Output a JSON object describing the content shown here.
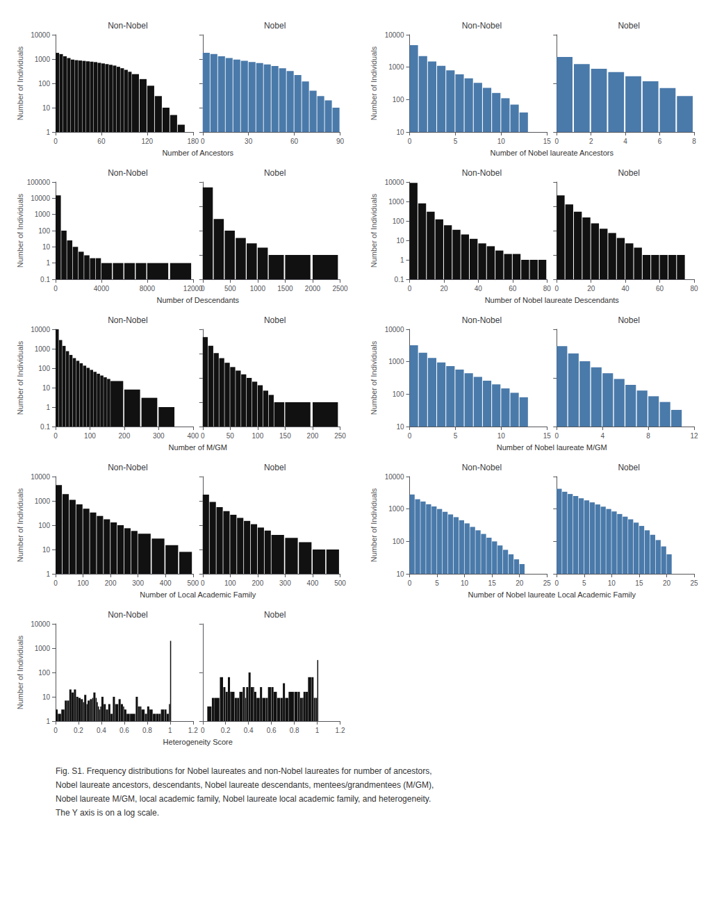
{
  "chart_data": [
    {
      "type": "bar",
      "title": "Non-Nobel",
      "ylabel": "Number of Individuals",
      "xlabel": "Number of Ancestors",
      "color": "#111111",
      "log": "y",
      "grid": false,
      "x": [
        0,
        5,
        10,
        15,
        20,
        25,
        30,
        35,
        40,
        45,
        50,
        55,
        60,
        65,
        70,
        75,
        80,
        85,
        90,
        95,
        100,
        110,
        120,
        130,
        140,
        150,
        160
      ],
      "values": [
        1800,
        1600,
        1300,
        1100,
        950,
        900,
        870,
        840,
        810,
        780,
        750,
        700,
        660,
        620,
        580,
        540,
        480,
        420,
        360,
        300,
        240,
        150,
        80,
        30,
        10,
        5,
        2
      ],
      "xlim": [
        0,
        180
      ],
      "xticks": [
        0,
        60,
        120,
        180
      ],
      "ylim": [
        1,
        10000
      ],
      "yticks": [
        1,
        10,
        100,
        1000,
        10000
      ],
      "annotations": [
        "Fig. S1. Frequency distributions for Nobel laureates and non-Nobel laureates for number of ancestors,",
        "Nobel laureate ancestors, descendants, Nobel laureate descendants, mentees/grandmentees (M/GM),",
        "Nobel laureate M/GM, local academic family, Nobel laureate local academic family, and heterogeneity.",
        "The Y axis is on a log scale."
      ]
    },
    {
      "type": "bar",
      "title": "Nobel",
      "color": "#4a7aaa",
      "log": "y",
      "grid": false,
      "tick_labels": "x",
      "x": [
        0,
        5,
        10,
        15,
        20,
        25,
        30,
        35,
        40,
        45,
        50,
        55,
        60,
        65,
        70,
        75,
        80,
        85
      ],
      "values": [
        180,
        160,
        130,
        110,
        95,
        85,
        75,
        68,
        60,
        52,
        42,
        32,
        22,
        12,
        5,
        3,
        2,
        1
      ],
      "xlim": [
        0,
        90
      ],
      "xticks": [
        0,
        30,
        60,
        90
      ],
      "ylim": [
        0.1,
        1000
      ],
      "yticks": [
        0.1,
        1,
        10,
        100,
        1000
      ]
    },
    {
      "type": "bar",
      "title": "Non-Nobel",
      "ylabel": "Number of Individuals",
      "xlabel": "Number of Nobel laureate Ancestors",
      "color": "#4a7aaa",
      "log": "y",
      "grid": false,
      "x": [
        0,
        1,
        2,
        3,
        4,
        5,
        6,
        7,
        8,
        9,
        10,
        11,
        12
      ],
      "values": [
        4800,
        2200,
        1500,
        1100,
        800,
        600,
        450,
        330,
        230,
        160,
        110,
        70,
        40
      ],
      "xlim": [
        0,
        15
      ],
      "xticks": [
        0,
        5,
        10,
        15
      ],
      "ylim": [
        10,
        10000
      ],
      "yticks": [
        10,
        100,
        1000,
        10000
      ]
    },
    {
      "type": "bar",
      "title": "Nobel",
      "color": "#4a7aaa",
      "log": "y",
      "grid": false,
      "tick_labels": "x",
      "x": [
        0,
        1,
        2,
        3,
        4,
        5,
        6,
        7
      ],
      "values": [
        350,
        250,
        200,
        170,
        140,
        110,
        80,
        55
      ],
      "xlim": [
        0,
        8
      ],
      "xticks": [
        0,
        2,
        4,
        6,
        8
      ],
      "ylim": [
        10,
        1000
      ],
      "yticks": [
        10,
        100,
        1000
      ]
    },
    {
      "type": "bar",
      "title": "Non-Nobel",
      "ylabel": "Number of Individuals",
      "xlabel": "Number of Descendants",
      "color": "#111111",
      "log": "y",
      "grid": false,
      "x": [
        0,
        500,
        1000,
        1500,
        2000,
        2500,
        3000,
        3500,
        4000,
        5000,
        6000,
        7000,
        8000,
        10000
      ],
      "values": [
        15000,
        100,
        25,
        10,
        5,
        3,
        2,
        2,
        1,
        1,
        1,
        1,
        1,
        1
      ],
      "xlim": [
        0,
        12000
      ],
      "xticks": [
        0,
        4000,
        8000,
        12000
      ],
      "ylim": [
        0.1,
        100000
      ],
      "yticks": [
        0.1,
        1,
        10,
        100,
        1000,
        10000,
        100000
      ]
    },
    {
      "type": "bar",
      "title": "Nobel",
      "color": "#111111",
      "log": "y",
      "grid": false,
      "tick_labels": "x",
      "x": [
        0,
        200,
        400,
        600,
        800,
        1000,
        1200,
        1500,
        2000
      ],
      "values": [
        600,
        30,
        10,
        5,
        3,
        2,
        1,
        1,
        1
      ],
      "xlim": [
        0,
        2500
      ],
      "xticks": [
        0,
        500,
        1000,
        1500,
        2000,
        2500
      ],
      "ylim": [
        0.1,
        1000
      ],
      "yticks": [
        0.1,
        1,
        10,
        100,
        1000
      ]
    },
    {
      "type": "bar",
      "title": "Non-Nobel",
      "ylabel": "Number of Individuals",
      "xlabel": "Number of Nobel laureate Descendants",
      "color": "#111111",
      "log": "y",
      "grid": false,
      "x": [
        0,
        5,
        10,
        15,
        20,
        25,
        30,
        35,
        40,
        45,
        50,
        55,
        60,
        65,
        70,
        75
      ],
      "values": [
        9000,
        800,
        300,
        120,
        60,
        35,
        20,
        12,
        7,
        5,
        3,
        2,
        2,
        1,
        1,
        1
      ],
      "xlim": [
        0,
        80
      ],
      "xticks": [
        0,
        20,
        40,
        60,
        80
      ],
      "ylim": [
        0.1,
        10000
      ],
      "yticks": [
        0.1,
        1,
        10,
        100,
        1000,
        10000
      ]
    },
    {
      "type": "bar",
      "title": "Nobel",
      "color": "#111111",
      "log": "y",
      "grid": false,
      "tick_labels": "x",
      "x": [
        0,
        5,
        10,
        15,
        20,
        25,
        30,
        35,
        40,
        45,
        50,
        55,
        60,
        65,
        70
      ],
      "values": [
        280,
        120,
        60,
        35,
        20,
        12,
        8,
        5,
        3,
        2,
        1,
        1,
        1,
        1,
        1
      ],
      "xlim": [
        0,
        80
      ],
      "xticks": [
        0,
        20,
        40,
        60,
        80
      ],
      "ylim": [
        0.1,
        1000
      ],
      "yticks": [
        0.1,
        1,
        10,
        100,
        1000
      ]
    },
    {
      "type": "bar",
      "title": "Non-Nobel",
      "ylabel": "Number of Individuals",
      "xlabel": "Number of M/GM",
      "color": "#111111",
      "log": "y",
      "grid": false,
      "x": [
        0,
        10,
        20,
        30,
        40,
        50,
        60,
        70,
        80,
        90,
        100,
        110,
        120,
        130,
        140,
        150,
        160,
        200,
        250,
        300
      ],
      "values": [
        10000,
        2800,
        1400,
        750,
        480,
        330,
        240,
        180,
        135,
        105,
        82,
        65,
        52,
        42,
        34,
        28,
        22,
        8,
        3,
        1
      ],
      "xlim": [
        0,
        400
      ],
      "xticks": [
        0,
        100,
        200,
        300,
        400
      ],
      "ylim": [
        0.1,
        10000
      ],
      "yticks": [
        0.1,
        1,
        10,
        100,
        1000,
        10000
      ]
    },
    {
      "type": "bar",
      "title": "Nobel",
      "color": "#111111",
      "log": "y",
      "grid": false,
      "tick_labels": "x",
      "x": [
        0,
        10,
        20,
        30,
        40,
        50,
        60,
        70,
        80,
        90,
        100,
        110,
        120,
        130,
        150,
        200
      ],
      "values": [
        480,
        210,
        105,
        65,
        42,
        28,
        20,
        14,
        10,
        7,
        5,
        3,
        2,
        1,
        1,
        1
      ],
      "xlim": [
        0,
        250
      ],
      "xticks": [
        0,
        50,
        100,
        150,
        200,
        250
      ],
      "ylim": [
        0.1,
        1000
      ],
      "yticks": [
        0.1,
        1,
        10,
        100,
        1000
      ]
    },
    {
      "type": "bar",
      "title": "Non-Nobel",
      "ylabel": "Number of Individuals",
      "xlabel": "Number of Nobel laureate M/GM",
      "color": "#4a7aaa",
      "log": "y",
      "grid": false,
      "x": [
        0,
        1,
        2,
        3,
        4,
        5,
        6,
        7,
        8,
        9,
        10,
        11,
        12
      ],
      "values": [
        3200,
        1900,
        1300,
        950,
        730,
        570,
        440,
        340,
        260,
        200,
        150,
        110,
        80
      ],
      "xlim": [
        0,
        15
      ],
      "xticks": [
        0,
        5,
        10,
        15
      ],
      "ylim": [
        10,
        10000
      ],
      "yticks": [
        10,
        100,
        1000,
        10000
      ]
    },
    {
      "type": "bar",
      "title": "Nobel",
      "color": "#4a7aaa",
      "log": "y",
      "grid": false,
      "tick_labels": "x",
      "x": [
        0,
        1,
        2,
        3,
        4,
        5,
        6,
        7,
        8,
        9,
        10
      ],
      "values": [
        450,
        320,
        220,
        165,
        125,
        95,
        72,
        55,
        42,
        32,
        22
      ],
      "xlim": [
        0,
        12
      ],
      "xticks": [
        0,
        4,
        8,
        12
      ],
      "ylim": [
        10,
        1000
      ],
      "yticks": [
        10,
        100,
        1000
      ]
    },
    {
      "type": "bar",
      "title": "Non-Nobel",
      "ylabel": "Number of Individuals",
      "xlabel": "Number of Local Academic Family",
      "color": "#111111",
      "log": "y",
      "grid": false,
      "x": [
        0,
        25,
        50,
        75,
        100,
        125,
        150,
        175,
        200,
        225,
        250,
        275,
        300,
        350,
        400,
        450
      ],
      "values": [
        4500,
        1900,
        1100,
        720,
        480,
        330,
        240,
        175,
        130,
        100,
        75,
        58,
        45,
        28,
        15,
        8
      ],
      "xlim": [
        0,
        500
      ],
      "xticks": [
        0,
        100,
        200,
        300,
        400,
        500
      ],
      "ylim": [
        1,
        10000
      ],
      "yticks": [
        1,
        10,
        100,
        1000,
        10000
      ]
    },
    {
      "type": "bar",
      "title": "Nobel",
      "color": "#111111",
      "log": "y",
      "grid": false,
      "tick_labels": "x",
      "x": [
        0,
        25,
        50,
        75,
        100,
        125,
        150,
        175,
        200,
        225,
        250,
        300,
        350,
        400,
        450
      ],
      "values": [
        180,
        90,
        55,
        38,
        27,
        20,
        15,
        11,
        8,
        6,
        4,
        3,
        2,
        1,
        1
      ],
      "xlim": [
        0,
        500
      ],
      "xticks": [
        0,
        100,
        200,
        300,
        400,
        500
      ],
      "ylim": [
        0.1,
        1000
      ],
      "yticks": [
        0.1,
        1,
        10,
        100,
        1000
      ]
    },
    {
      "type": "bar",
      "title": "Non-Nobel",
      "ylabel": "Number of Individuals",
      "xlabel": "Number of Nobel laureate Local Academic Family",
      "color": "#4a7aaa",
      "log": "y",
      "grid": false,
      "x": [
        0,
        1,
        2,
        3,
        4,
        5,
        6,
        7,
        8,
        9,
        10,
        11,
        12,
        13,
        14,
        15,
        16,
        17,
        18,
        19,
        20
      ],
      "values": [
        2800,
        2000,
        1700,
        1400,
        1200,
        1000,
        820,
        680,
        560,
        450,
        360,
        280,
        220,
        170,
        130,
        100,
        75,
        55,
        40,
        28,
        20
      ],
      "xlim": [
        0,
        25
      ],
      "xticks": [
        0,
        5,
        10,
        15,
        20,
        25
      ],
      "ylim": [
        10,
        10000
      ],
      "yticks": [
        10,
        100,
        1000,
        10000
      ]
    },
    {
      "type": "bar",
      "title": "Nobel",
      "color": "#4a7aaa",
      "log": "y",
      "grid": false,
      "tick_labels": "x",
      "x": [
        0,
        1,
        2,
        3,
        4,
        5,
        6,
        7,
        8,
        9,
        10,
        11,
        12,
        13,
        14,
        15,
        16,
        17,
        18,
        19,
        20
      ],
      "values": [
        420,
        340,
        290,
        250,
        215,
        185,
        160,
        138,
        118,
        100,
        84,
        70,
        58,
        48,
        38,
        30,
        22,
        16,
        11,
        7,
        4
      ],
      "xlim": [
        0,
        25
      ],
      "xticks": [
        0,
        5,
        10,
        15,
        20,
        25
      ],
      "ylim": [
        1,
        1000
      ],
      "yticks": [
        1,
        10,
        100,
        1000
      ]
    },
    {
      "type": "bar",
      "title": "Non-Nobel",
      "ylabel": "Number of Individuals",
      "xlabel": "Heterogeneity Score",
      "color": "#111111",
      "log": "y",
      "grid": false,
      "x": [
        0.0,
        0.02,
        0.05,
        0.08,
        0.1,
        0.12,
        0.14,
        0.16,
        0.18,
        0.2,
        0.22,
        0.24,
        0.25,
        0.27,
        0.28,
        0.3,
        0.32,
        0.33,
        0.35,
        0.36,
        0.37,
        0.38,
        0.39,
        0.4,
        0.42,
        0.44,
        0.46,
        0.48,
        0.5,
        0.52,
        0.55,
        0.57,
        0.59,
        0.6,
        0.62,
        0.65,
        0.7,
        0.72,
        0.74,
        0.75,
        0.78,
        0.8,
        0.82,
        0.85,
        0.88,
        0.9,
        0.92,
        0.95,
        0.97,
        0.99,
        1.0
      ],
      "values": [
        3,
        2,
        3,
        7,
        7,
        20,
        15,
        20,
        10,
        9,
        8,
        6,
        12,
        5,
        7,
        8,
        9,
        15,
        9,
        6,
        4,
        3,
        4,
        10,
        5,
        3,
        5,
        2,
        10,
        5,
        8,
        5,
        4,
        3,
        2,
        2,
        10,
        4,
        4,
        3,
        2,
        4,
        3,
        2,
        2,
        2,
        3,
        3,
        2,
        5,
        2000
      ],
      "xlim": [
        0,
        1.2
      ],
      "xticks": [
        0,
        0.2,
        0.4,
        0.6,
        0.8,
        1,
        1.2
      ],
      "ylim": [
        1,
        10000
      ],
      "yticks": [
        1,
        10,
        100,
        1000,
        10000
      ]
    },
    {
      "type": "bar",
      "title": "Nobel",
      "color": "#111111",
      "log": "y",
      "grid": false,
      "tick_labels": "x",
      "x": [
        0.04,
        0.08,
        0.1,
        0.15,
        0.18,
        0.2,
        0.22,
        0.24,
        0.25,
        0.28,
        0.3,
        0.32,
        0.35,
        0.37,
        0.38,
        0.4,
        0.42,
        0.44,
        0.45,
        0.47,
        0.5,
        0.52,
        0.55,
        0.57,
        0.6,
        0.62,
        0.65,
        0.68,
        0.7,
        0.72,
        0.75,
        0.8,
        0.83,
        0.85,
        0.87,
        0.88,
        0.9,
        0.92,
        0.95,
        0.97,
        0.98,
        0.99,
        1.0
      ],
      "values": [
        2,
        3,
        3,
        8,
        5,
        4,
        8,
        4,
        4,
        3,
        3,
        4,
        5,
        3,
        5,
        10,
        5,
        5,
        4,
        3,
        5,
        3,
        3,
        5,
        5,
        4,
        3,
        3,
        6,
        3,
        4,
        4,
        4,
        3,
        3,
        4,
        4,
        8,
        8,
        3,
        3,
        3,
        18
      ],
      "xlim": [
        0,
        1.2
      ],
      "xticks": [
        0,
        0.2,
        0.4,
        0.6,
        0.8,
        1,
        1.2
      ],
      "ylim": [
        1,
        100
      ],
      "yticks": [
        1,
        10,
        100
      ]
    }
  ]
}
